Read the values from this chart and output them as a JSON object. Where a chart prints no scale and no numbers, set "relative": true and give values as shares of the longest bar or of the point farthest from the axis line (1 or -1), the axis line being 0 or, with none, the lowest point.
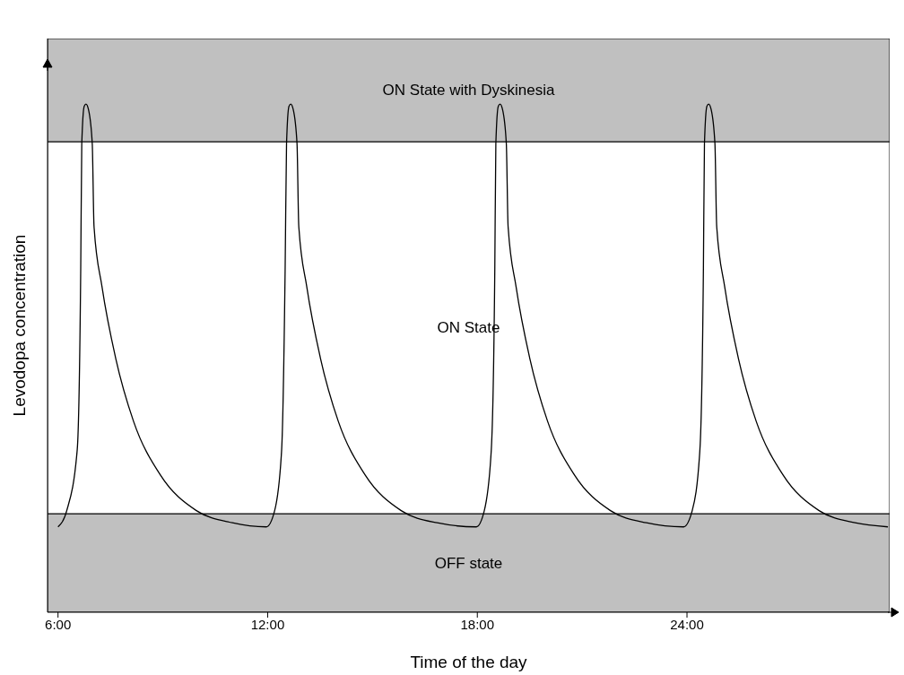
{
  "chart_data": {
    "type": "line",
    "relative": true,
    "tick_labels": "x",
    "marker": "none",
    "line_style": "solid",
    "xlabel": "Time of the day",
    "ylabel": "Levodopa concentration",
    "xlim": [
      5.7,
      29.8
    ],
    "xticks": [
      {
        "value": 6,
        "label": "6:00"
      },
      {
        "value": 12,
        "label": "12:00"
      },
      {
        "value": 18,
        "label": "18:00"
      },
      {
        "value": 24,
        "label": "24:00"
      }
    ],
    "bands": [
      {
        "axis": "y",
        "from": 0,
        "to": 0.194,
        "label": "OFF state",
        "color": "#c0c0c0"
      },
      {
        "axis": "y",
        "from": 0.194,
        "to": 0.926,
        "label": "ON State",
        "color": "#ffffff"
      },
      {
        "axis": "y",
        "from": 0.926,
        "to": 1.129,
        "label": "ON State with Dyskinesia",
        "color": "#c0c0c0"
      }
    ],
    "series": [
      {
        "color": "#000000",
        "x": [
          6.0,
          6.25,
          6.55,
          6.65,
          6.68,
          6.75,
          6.8,
          6.87,
          6.98,
          7.03,
          7.26,
          7.65,
          8.16,
          8.93,
          9.96,
          10.99,
          11.96,
          12.2,
          12.4,
          12.5,
          12.54,
          12.61,
          12.66,
          12.73,
          12.84,
          12.89,
          13.12,
          13.51,
          14.02,
          14.79,
          15.82,
          16.85,
          17.97,
          18.2,
          18.4,
          18.5,
          18.53,
          18.6,
          18.65,
          18.72,
          18.83,
          18.88,
          19.11,
          19.5,
          20.01,
          20.78,
          21.81,
          22.84,
          23.9,
          24.15,
          24.37,
          24.47,
          24.5,
          24.57,
          24.62,
          24.69,
          24.8,
          24.85,
          25.08,
          25.47,
          25.98,
          26.75,
          27.78,
          28.81,
          29.75
        ],
        "values": [
          0.168,
          0.2,
          0.32,
          0.675,
          0.922,
          0.996,
          1,
          0.99,
          0.922,
          0.76,
          0.64,
          0.5,
          0.376,
          0.27,
          0.2,
          0.176,
          0.168,
          0.2,
          0.32,
          0.675,
          0.922,
          0.996,
          1,
          0.99,
          0.922,
          0.76,
          0.64,
          0.5,
          0.376,
          0.27,
          0.2,
          0.176,
          0.168,
          0.2,
          0.32,
          0.675,
          0.922,
          0.996,
          1,
          0.99,
          0.922,
          0.76,
          0.64,
          0.5,
          0.376,
          0.27,
          0.2,
          0.176,
          0.168,
          0.2,
          0.32,
          0.675,
          0.922,
          0.996,
          1,
          0.99,
          0.922,
          0.76,
          0.64,
          0.5,
          0.376,
          0.27,
          0.2,
          0.176,
          0.168
        ]
      }
    ]
  }
}
